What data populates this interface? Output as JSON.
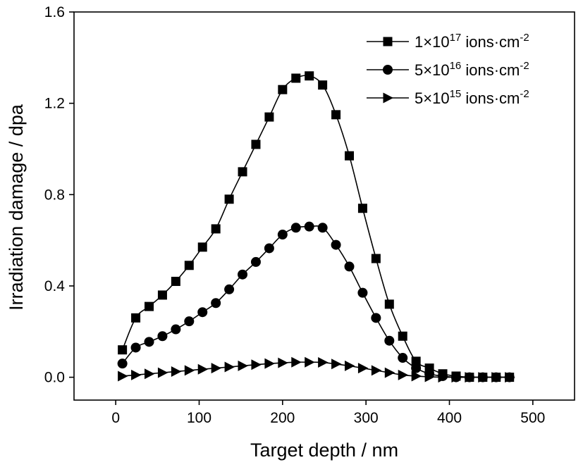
{
  "chart_data": {
    "type": "line",
    "title": "",
    "xlabel": "Target depth / nm",
    "ylabel": "Irradiation damage / dpa",
    "xlim": [
      -50,
      550
    ],
    "ylim": [
      -0.1,
      1.6
    ],
    "xticks": [
      0,
      100,
      200,
      300,
      400,
      500
    ],
    "yticks": [
      0.0,
      0.4,
      0.8,
      1.2,
      1.6
    ],
    "xtick_labels": [
      "0",
      "100",
      "200",
      "300",
      "400",
      "500"
    ],
    "ytick_labels": [
      "0.0",
      "0.4",
      "0.8",
      "1.2",
      "1.6"
    ],
    "grid": false,
    "legend_position": "top-right",
    "x": [
      8,
      24,
      40,
      56,
      72,
      88,
      104,
      120,
      136,
      152,
      168,
      184,
      200,
      216,
      232,
      248,
      264,
      280,
      296,
      312,
      328,
      344,
      360,
      376,
      392,
      408,
      424,
      440,
      456,
      472
    ],
    "series": [
      {
        "legend_base": "1×10",
        "legend_exp": "17",
        "legend_unit": " ions·cm",
        "legend_unit_exp": "-2",
        "marker": "square",
        "values": [
          0.12,
          0.26,
          0.31,
          0.36,
          0.42,
          0.49,
          0.57,
          0.65,
          0.78,
          0.9,
          1.02,
          1.14,
          1.26,
          1.31,
          1.32,
          1.28,
          1.15,
          0.97,
          0.74,
          0.52,
          0.32,
          0.18,
          0.07,
          0.04,
          0.015,
          0.005,
          0.0,
          0.0,
          0.0,
          0.0
        ]
      },
      {
        "legend_base": "5×10",
        "legend_exp": "16",
        "legend_unit": " ions·cm",
        "legend_unit_exp": "-2",
        "marker": "circle",
        "values": [
          0.06,
          0.13,
          0.155,
          0.18,
          0.21,
          0.245,
          0.285,
          0.325,
          0.385,
          0.45,
          0.505,
          0.565,
          0.625,
          0.655,
          0.66,
          0.655,
          0.58,
          0.485,
          0.37,
          0.26,
          0.16,
          0.085,
          0.04,
          0.015,
          0.005,
          0.0,
          0.0,
          0.0,
          0.0,
          0.0
        ]
      },
      {
        "legend_base": "5×10",
        "legend_exp": "15",
        "legend_unit": " ions·cm",
        "legend_unit_exp": "-2",
        "marker": "triangle-right",
        "values": [
          0.005,
          0.01,
          0.015,
          0.02,
          0.025,
          0.03,
          0.035,
          0.04,
          0.045,
          0.05,
          0.055,
          0.06,
          0.063,
          0.066,
          0.066,
          0.065,
          0.058,
          0.05,
          0.04,
          0.03,
          0.02,
          0.01,
          0.005,
          0.002,
          0.0,
          0.0,
          0.0,
          0.0,
          0.0,
          0.0
        ]
      }
    ]
  }
}
